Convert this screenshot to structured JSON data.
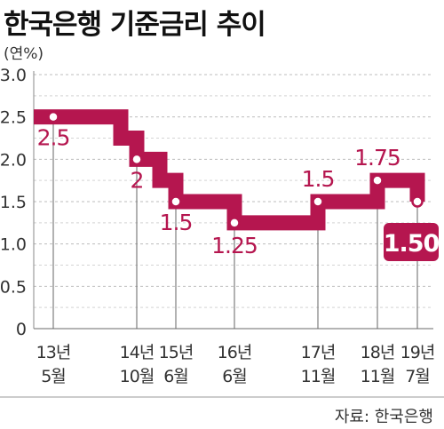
{
  "chart_data": {
    "type": "line",
    "title": "한국은행 기준금리 추이",
    "unit": "(연%)",
    "ylim": [
      0,
      3.0
    ],
    "y_ticks": [
      "0",
      "0.5",
      "1.0",
      "1.5",
      "2.0",
      "2.5",
      "3.0"
    ],
    "x_ticks": [
      {
        "year": "13년",
        "month": "5월"
      },
      {
        "year": "14년",
        "month": "10월"
      },
      {
        "year": "15년",
        "month": "6월"
      },
      {
        "year": "16년",
        "month": "6월"
      },
      {
        "year": "17년",
        "month": "11월"
      },
      {
        "year": "18년",
        "month": "11월"
      },
      {
        "year": "19년",
        "month": "7월"
      }
    ],
    "points": [
      {
        "date": "13년 5월",
        "value": 2.5,
        "label": "2.5"
      },
      {
        "date": "14년 10월",
        "value": 2.0,
        "label": "2"
      },
      {
        "date": "15년 6월",
        "value": 1.5,
        "label": "1.5"
      },
      {
        "date": "16년 6월",
        "value": 1.25,
        "label": "1.25"
      },
      {
        "date": "17년 11월",
        "value": 1.5,
        "label": "1.5"
      },
      {
        "date": "18년 11월",
        "value": 1.75,
        "label": "1.75"
      },
      {
        "date": "19년 7월",
        "value": 1.5,
        "label": "1.50"
      }
    ],
    "series_color": "#b5164f",
    "grid": "horizontal dashed"
  },
  "source": {
    "prefix": "자료:",
    "name": "한국은행"
  }
}
